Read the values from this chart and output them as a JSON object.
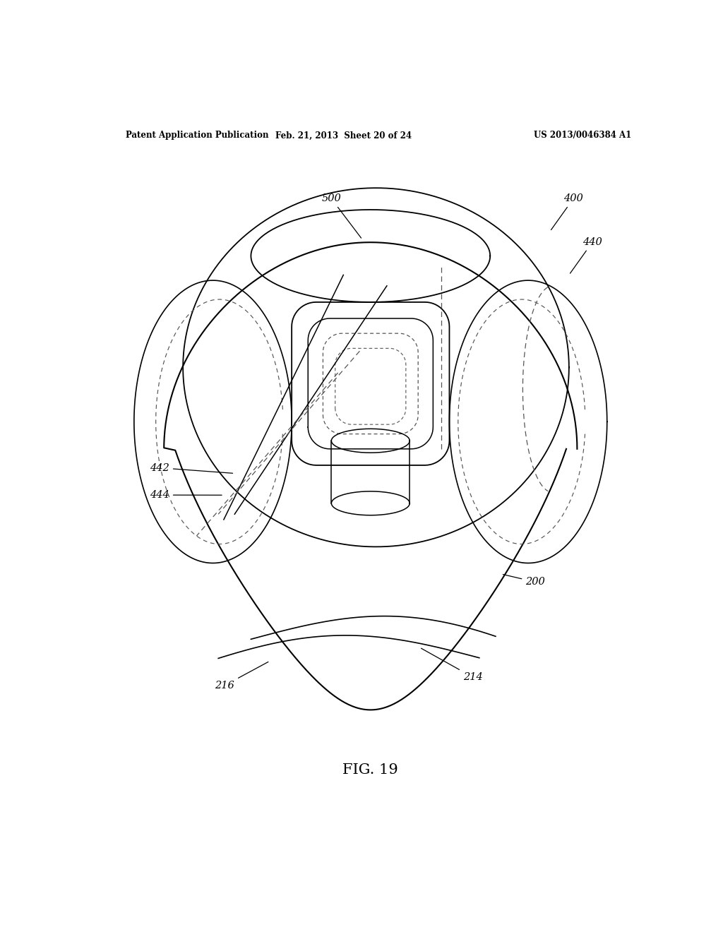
{
  "bg_color": "#ffffff",
  "line_color": "#000000",
  "dashed_color": "#555555",
  "header_left": "Patent Application Publication",
  "header_mid": "Feb. 21, 2013  Sheet 20 of 24",
  "header_right": "US 2013/0046384 A1",
  "figure_label": "FIG. 19"
}
